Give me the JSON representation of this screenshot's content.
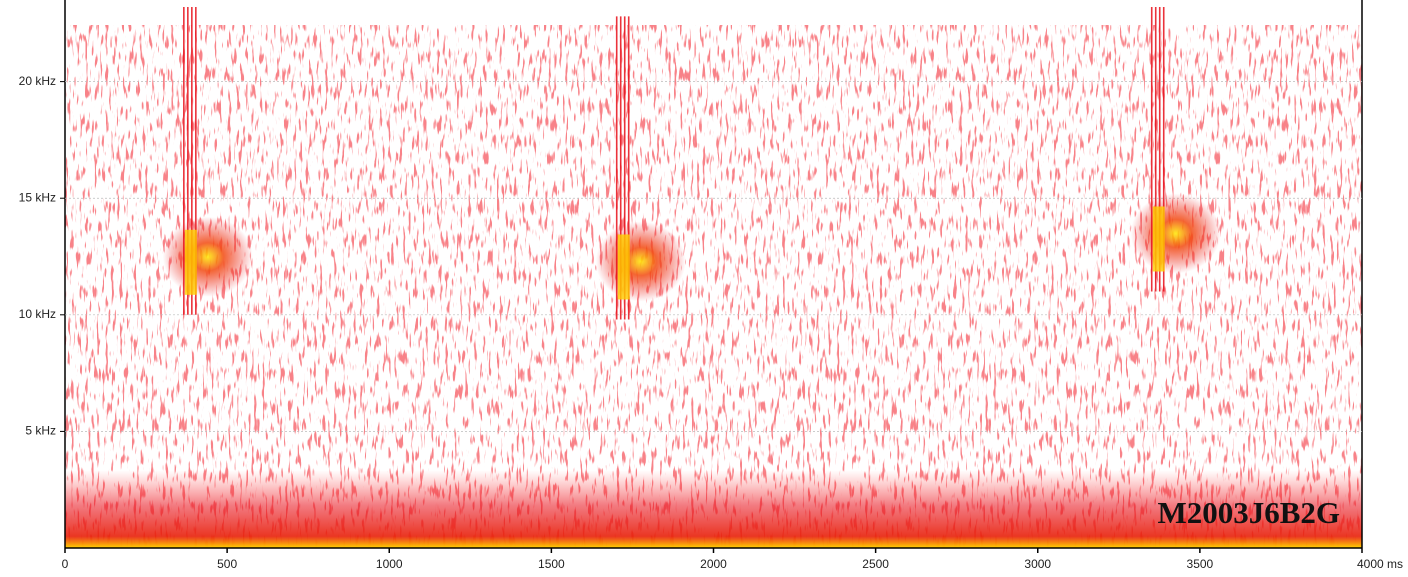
{
  "chart_data": {
    "type": "spectrogram",
    "watermark": "M2003J6B2G",
    "xlim": [
      0,
      4000
    ],
    "xticks": [
      0,
      500,
      1000,
      1500,
      2000,
      2500,
      3000,
      3500,
      {
        "value": 4000,
        "label": "4000 ms"
      }
    ],
    "ylim": [
      0,
      23.5
    ],
    "yticks": [
      {
        "value": 5,
        "label": "5 kHz"
      },
      {
        "value": 10,
        "label": "10 kHz"
      },
      {
        "value": 15,
        "label": "15 kHz"
      },
      {
        "value": 20,
        "label": "20 kHz"
      }
    ],
    "grid": true,
    "color": "#e8101a",
    "calls": [
      {
        "time": 385,
        "low_khz": 10,
        "high_khz": 23.2
      },
      {
        "time": 1720,
        "low_khz": 9.8,
        "high_khz": 22.8
      },
      {
        "time": 3370,
        "low_khz": 11,
        "high_khz": 23.2
      }
    ]
  }
}
